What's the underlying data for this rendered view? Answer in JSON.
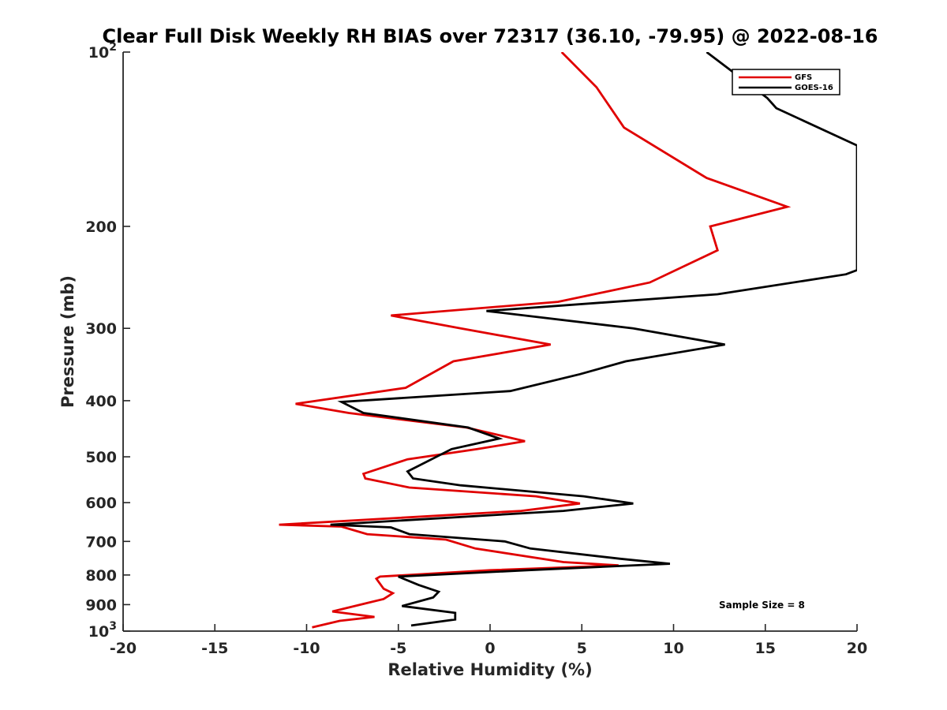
{
  "chart_data": {
    "type": "line",
    "title": "Clear Full Disk Weekly RH BIAS over 72317 (36.10, -79.95) @ 2022-08-16",
    "xlabel": "Relative Humidity (%)",
    "ylabel": "Pressure (mb)",
    "xlim": [
      -20,
      20
    ],
    "ylim": [
      1000,
      100
    ],
    "y_scale": "log",
    "y_reversed": true,
    "grid": false,
    "legend_position": "top-right",
    "x_ticks": [
      -20,
      -15,
      -10,
      -5,
      0,
      5,
      10,
      15,
      20
    ],
    "x_tick_labels": [
      "-20",
      "-15",
      "-10",
      "-5",
      "0",
      "5",
      "10",
      "15",
      "20"
    ],
    "y_ticks": [
      {
        "value": 100,
        "base": "10",
        "exp": "2"
      },
      {
        "value": 200,
        "label": "200"
      },
      {
        "value": 300,
        "label": "300"
      },
      {
        "value": 400,
        "label": "400"
      },
      {
        "value": 500,
        "label": "500"
      },
      {
        "value": 600,
        "label": "600"
      },
      {
        "value": 700,
        "label": "700"
      },
      {
        "value": 800,
        "label": "800"
      },
      {
        "value": 900,
        "label": "900"
      },
      {
        "value": 1000,
        "base": "10",
        "exp": "3"
      }
    ],
    "annotation": "Sample Size = 8",
    "series": [
      {
        "name": "GFS",
        "color": "#e00000",
        "points": [
          [
            3.9,
            100
          ],
          [
            5.8,
            115
          ],
          [
            7.3,
            135
          ],
          [
            11.8,
            165
          ],
          [
            16.2,
            185
          ],
          [
            12.0,
            200
          ],
          [
            12.4,
            220
          ],
          [
            8.7,
            250
          ],
          [
            3.7,
            270
          ],
          [
            -5.4,
            285
          ],
          [
            -1.6,
            300
          ],
          [
            3.3,
            320
          ],
          [
            -2.0,
            342
          ],
          [
            -4.6,
            380
          ],
          [
            -10.6,
            405
          ],
          [
            -7.7,
            420
          ],
          [
            -1.3,
            445
          ],
          [
            1.9,
            470
          ],
          [
            -0.7,
            485
          ],
          [
            -4.5,
            505
          ],
          [
            -6.9,
            535
          ],
          [
            -6.8,
            545
          ],
          [
            -4.4,
            565
          ],
          [
            2.5,
            585
          ],
          [
            4.9,
            602
          ],
          [
            1.7,
            620
          ],
          [
            -11.5,
            655
          ],
          [
            -8.1,
            660
          ],
          [
            -6.7,
            680
          ],
          [
            -2.4,
            695
          ],
          [
            -0.8,
            720
          ],
          [
            4.0,
            760
          ],
          [
            7.0,
            770
          ],
          [
            0.0,
            785
          ],
          [
            -6.0,
            805
          ],
          [
            -6.2,
            812
          ],
          [
            -5.8,
            845
          ],
          [
            -5.3,
            860
          ],
          [
            -5.8,
            880
          ],
          [
            -8.6,
            925
          ],
          [
            -6.3,
            945
          ],
          [
            -8.2,
            960
          ],
          [
            -9.7,
            985
          ]
        ]
      },
      {
        "name": "GOES-16",
        "color": "#000000",
        "points": [
          [
            11.8,
            100
          ],
          [
            15.1,
            120
          ],
          [
            15.6,
            125
          ],
          [
            20.0,
            145
          ],
          [
            20.0,
            238
          ],
          [
            19.4,
            242
          ],
          [
            12.4,
            262
          ],
          [
            -0.2,
            280
          ],
          [
            7.8,
            300
          ],
          [
            12.8,
            320
          ],
          [
            7.4,
            342
          ],
          [
            4.9,
            360
          ],
          [
            1.1,
            385
          ],
          [
            -8.1,
            402
          ],
          [
            -6.9,
            420
          ],
          [
            -1.2,
            445
          ],
          [
            0.5,
            465
          ],
          [
            -2.1,
            485
          ],
          [
            -4.5,
            530
          ],
          [
            -4.2,
            545
          ],
          [
            -1.6,
            560
          ],
          [
            5.1,
            585
          ],
          [
            7.8,
            602
          ],
          [
            4.0,
            620
          ],
          [
            -8.7,
            655
          ],
          [
            -5.4,
            662
          ],
          [
            -4.4,
            680
          ],
          [
            0.8,
            700
          ],
          [
            2.2,
            720
          ],
          [
            7.1,
            750
          ],
          [
            9.8,
            765
          ],
          [
            2.0,
            785
          ],
          [
            -5.0,
            805
          ],
          [
            -3.9,
            832
          ],
          [
            -2.8,
            855
          ],
          [
            -3.1,
            875
          ],
          [
            -4.8,
            905
          ],
          [
            -1.9,
            930
          ],
          [
            -1.9,
            955
          ],
          [
            -4.3,
            978
          ]
        ]
      }
    ]
  }
}
